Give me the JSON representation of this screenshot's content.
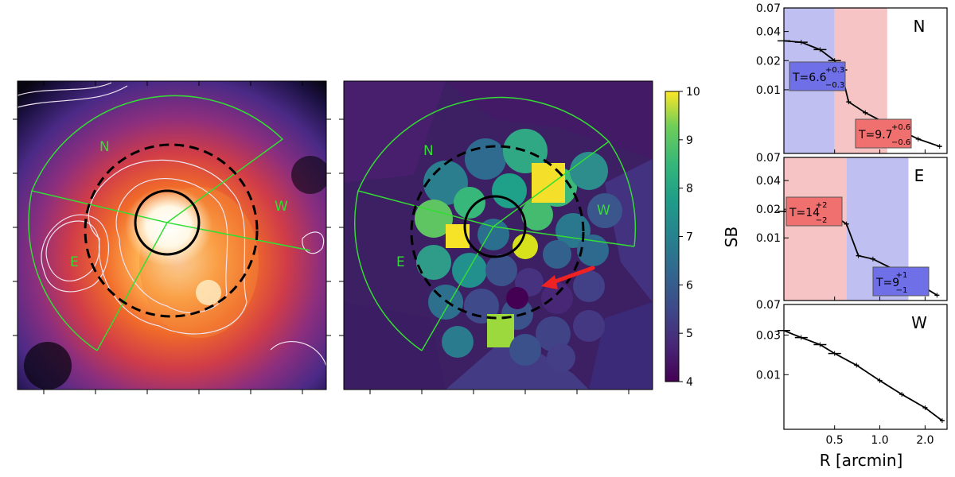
{
  "chart_data": [
    {
      "type": "heatmap",
      "panel": "xray-surface-brightness-image",
      "sectors": [
        "N",
        "W",
        "E"
      ],
      "colors": {
        "sector_lines": "#33dd33",
        "contours": "#f0e4f0",
        "circles": "#000000"
      }
    },
    {
      "type": "heatmap",
      "panel": "temperature-map",
      "sectors": [
        "N",
        "W",
        "E"
      ],
      "colorbar": {
        "ticks": [
          "4",
          "5",
          "6",
          "7",
          "8",
          "9",
          "10"
        ],
        "range": [
          4,
          10
        ],
        "colormap": "viridis"
      },
      "arrow_color": "#ee2222"
    },
    {
      "type": "line",
      "panel": "sb-profile-N",
      "label": "N",
      "yticks": [
        "0.07",
        "0.04",
        "0.02",
        "0.01"
      ],
      "shaded_regions": [
        {
          "color": "#b4b4ee",
          "label": "T=6.6",
          "sup": "+0.3",
          "sub": "−0.3"
        },
        {
          "color": "#f5baba",
          "label": "T=9.7",
          "sup": "+0.6",
          "sub": "−0.6"
        }
      ],
      "series": [
        {
          "x": [
            0.23,
            0.3,
            0.4,
            0.5,
            0.55,
            0.62,
            0.8,
            1.2,
            1.8,
            2.5
          ],
          "y": [
            0.032,
            0.031,
            0.026,
            0.02,
            0.016,
            0.0075,
            0.0058,
            0.0042,
            0.0031,
            0.0026
          ]
        }
      ]
    },
    {
      "type": "line",
      "panel": "sb-profile-E",
      "label": "E",
      "yticks": [
        "0.07",
        "0.04",
        "0.02",
        "0.01"
      ],
      "shaded_regions": [
        {
          "color": "#f5baba",
          "label": "T=14",
          "sup": "+2",
          "sub": "−2"
        },
        {
          "color": "#b4b4ee",
          "label": "T=9",
          "sup": "+1",
          "sub": "−1"
        }
      ],
      "series": [
        {
          "x": [
            0.23,
            0.3,
            0.4,
            0.5,
            0.6,
            0.72,
            0.9,
            1.3,
            1.8,
            2.4
          ],
          "y": [
            0.019,
            0.019,
            0.018,
            0.017,
            0.014,
            0.0065,
            0.006,
            0.0045,
            0.0033,
            0.0025
          ]
        }
      ]
    },
    {
      "type": "line",
      "panel": "sb-profile-W",
      "label": "W",
      "yticks": [
        "0.07",
        "0.03",
        "0.01"
      ],
      "series": [
        {
          "x": [
            0.23,
            0.3,
            0.4,
            0.5,
            0.7,
            1.0,
            1.4,
            2.0,
            2.6
          ],
          "y": [
            0.034,
            0.028,
            0.023,
            0.018,
            0.013,
            0.0085,
            0.0058,
            0.004,
            0.0028
          ]
        }
      ]
    }
  ],
  "shared_axes": {
    "xlabel": "R [arcmin]",
    "ylabel": "SB",
    "xticks": [
      "0.5",
      "1.0",
      "2.0"
    ]
  }
}
